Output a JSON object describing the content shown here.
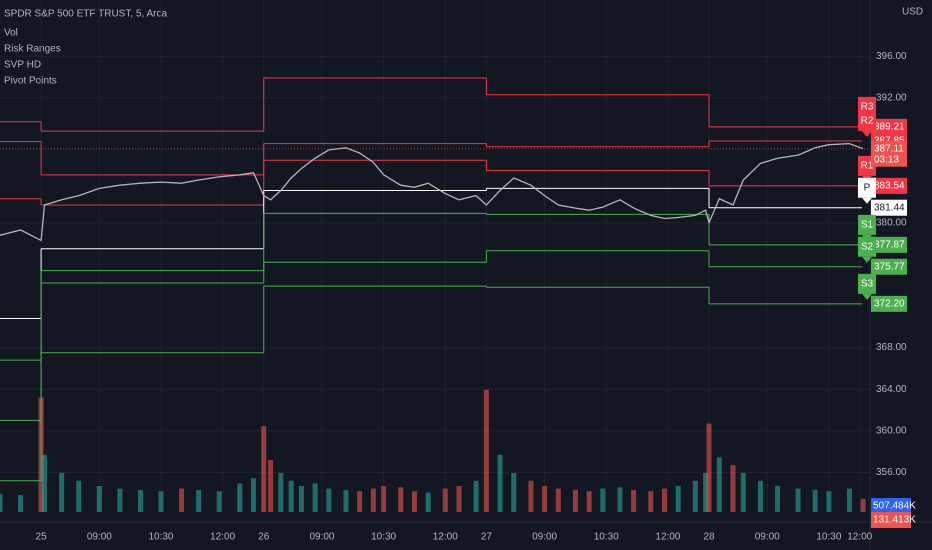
{
  "chart_data": {
    "type": "line",
    "title": "SPDR S&P 500 ETF TRUST, 5, Arca",
    "indicators": [
      "Vol",
      "Risk Ranges",
      "SVP HD",
      "Pivot Points"
    ],
    "currency": "USD",
    "color": "#b2b5be",
    "up_color": "#26a69a",
    "down_color": "#ef5350",
    "grid": true,
    "x": [
      -12,
      -6,
      0,
      1,
      6,
      11,
      17,
      23,
      29,
      35,
      41,
      46,
      52,
      58,
      62,
      65,
      67,
      70,
      73,
      76,
      80,
      84,
      89,
      93,
      97,
      100,
      105,
      109,
      113,
      118,
      122,
      127,
      130,
      134,
      138,
      143,
      147,
      151,
      156,
      160,
      164,
      169,
      173,
      178,
      182,
      186,
      191,
      194,
      195,
      198,
      202,
      205,
      210,
      215,
      221,
      226,
      230,
      236,
      240
    ],
    "values": [
      378.8,
      379.3,
      378.3,
      381.7,
      382.2,
      382.6,
      383.3,
      383.6,
      383.8,
      383.9,
      383.8,
      384.1,
      384.4,
      384.6,
      384.8,
      382.6,
      382.2,
      383.1,
      384.3,
      385.2,
      386.2,
      387.0,
      387.2,
      386.7,
      385.8,
      384.6,
      383.6,
      383.4,
      383.8,
      382.8,
      382.2,
      382.6,
      381.7,
      383.1,
      384.3,
      383.6,
      382.6,
      381.7,
      381.4,
      381.2,
      381.5,
      382.2,
      381.4,
      380.7,
      380.4,
      380.5,
      380.7,
      381.2,
      380.0,
      382.3,
      381.7,
      384.1,
      385.7,
      386.2,
      386.5,
      387.2,
      387.5,
      387.6,
      387.11
    ],
    "volume": [
      700,
      650,
      4400,
      2200,
      1500,
      1200,
      1000,
      900,
      850,
      800,
      900,
      850,
      800,
      1100,
      1300,
      3300,
      2000,
      1500,
      1200,
      1000,
      1100,
      900,
      850,
      800,
      900,
      1000,
      950,
      800,
      750,
      900,
      1000,
      1200,
      4700,
      2200,
      1500,
      1200,
      1000,
      900,
      850,
      800,
      900,
      950,
      850,
      800,
      900,
      1000,
      1200,
      1500,
      3400,
      2100,
      1800,
      1500,
      1200,
      1000,
      900,
      850,
      800,
      900,
      507.484
    ],
    "y2lim": [
      0,
      5000
    ],
    "xlim": [
      -12,
      242
    ],
    "ylim": [
      352.2,
      401.4
    ],
    "xticks": [
      {
        "value": 0,
        "label": "25"
      },
      {
        "value": 17,
        "label": "09:00"
      },
      {
        "value": 35,
        "label": "10:30"
      },
      {
        "value": 53,
        "label": "12:00"
      },
      {
        "value": 65,
        "label": "26"
      },
      {
        "value": 82,
        "label": "09:00"
      },
      {
        "value": 100,
        "label": "10:30"
      },
      {
        "value": 118,
        "label": "12:00"
      },
      {
        "value": 130,
        "label": "27"
      },
      {
        "value": 147,
        "label": "09:00"
      },
      {
        "value": 165,
        "label": "10:30"
      },
      {
        "value": 183,
        "label": "12:00"
      },
      {
        "value": 195,
        "label": "28"
      },
      {
        "value": 212,
        "label": "09:00"
      },
      {
        "value": 230,
        "label": "10:30"
      },
      {
        "value": 239,
        "label": "12:00"
      }
    ],
    "yticks": [
      {
        "value": 396,
        "label": "396.00"
      },
      {
        "value": 392,
        "label": "392.00"
      },
      {
        "value": 380,
        "label": "380.00"
      },
      {
        "value": 368,
        "label": "368.00"
      },
      {
        "value": 364,
        "label": "364.00"
      },
      {
        "value": 360,
        "label": "360.00"
      },
      {
        "value": 356,
        "label": "356.00"
      }
    ],
    "pivot_starts": [
      -12,
      0,
      65,
      130,
      195
    ],
    "pivots": [
      {
        "name": "R3",
        "color": "#f23645",
        "values": [
          389.7,
          388.8,
          393.9,
          392.3,
          389.21
        ],
        "value_label": "389.21"
      },
      {
        "name": "R2",
        "color": "#f23645",
        "values": [
          387.8,
          384.6,
          387.6,
          387.3,
          387.85
        ],
        "value_label": "387.85"
      },
      {
        "name": "R1",
        "color": "#f23645",
        "values": [
          382.3,
          381.7,
          386.0,
          385.0,
          383.54
        ],
        "value_label": "383.54"
      },
      {
        "name": "P",
        "color": "#ffffff",
        "values": [
          370.8,
          377.5,
          383.1,
          383.3,
          381.44
        ],
        "value_label": "381.44"
      },
      {
        "name": "S1",
        "color": "#4caf50",
        "values": [
          366.8,
          375.4,
          380.9,
          380.8,
          377.87
        ],
        "value_label": "377.87"
      },
      {
        "name": "S2",
        "color": "#4caf50",
        "values": [
          361.0,
          374.2,
          376.2,
          377.3,
          375.77
        ],
        "value_label": "375.77"
      },
      {
        "name": "S3",
        "color": "#4caf50",
        "values": [
          355.2,
          367.5,
          373.9,
          373.8,
          372.2
        ],
        "value_label": "372.20"
      }
    ],
    "last_price": 387.11,
    "countdown": "03:13",
    "volume_labels": [
      {
        "value": 507.484,
        "label": "507.484K",
        "color": "#2962ff"
      },
      {
        "value": 131.413,
        "label": "131.413K",
        "color": "#ef5350"
      }
    ]
  }
}
